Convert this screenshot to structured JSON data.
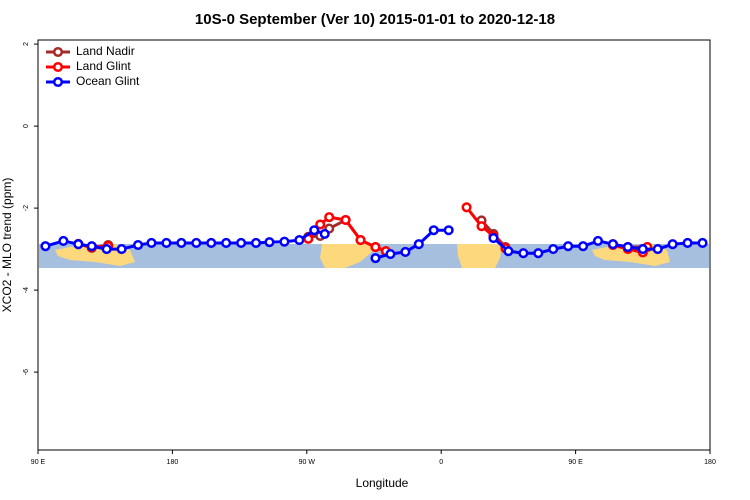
{
  "chart_data": {
    "type": "line",
    "title": "10S-0 September (Ver 10)   2015-01-01 to 2020-12-18",
    "x_label": "Longitude",
    "y_label": "XCO2 - MLO trend (ppm)",
    "xlim": [
      90,
      540
    ],
    "ylim": [
      -7.9,
      2.1
    ],
    "xticks": [
      {
        "value": 90,
        "label": "90 E"
      },
      180,
      {
        "value": 270,
        "label": "90 W"
      },
      {
        "value": 360,
        "label": "0"
      },
      {
        "value": 450,
        "label": "90 E"
      },
      {
        "value": 540,
        "label": "180"
      }
    ],
    "yticks": [
      2,
      0,
      -2,
      -4,
      -6
    ],
    "legend": "top-left",
    "series": [
      {
        "name": "Land Nadir",
        "color": "#a52a2a",
        "x": [
          117,
          126,
          137,
          200,
          271,
          279,
          285,
          296,
          306,
          316,
          323,
          350,
          387,
          395,
          403,
          440,
          475,
          485,
          498
        ],
        "values": [
          -2.87,
          -2.97,
          -2.9,
          null,
          -2.7,
          -2.68,
          -2.5,
          -2.29,
          -2.78,
          -2.95,
          -3.05,
          null,
          -2.3,
          -2.63,
          -2.95,
          null,
          -2.88,
          -2.95,
          -2.95
        ]
      },
      {
        "name": "Land Glint",
        "color": "#ff0000",
        "x": [
          117,
          126,
          137,
          200,
          271,
          279,
          285,
          296,
          306,
          316,
          323,
          350,
          377,
          387,
          395,
          403,
          440,
          475,
          485,
          495,
          498
        ],
        "values": [
          -2.88,
          -2.95,
          -2.93,
          null,
          -2.75,
          -2.4,
          -2.22,
          -2.29,
          -2.78,
          -2.95,
          -3.05,
          null,
          -1.98,
          -2.44,
          -2.68,
          -2.98,
          null,
          -2.9,
          -3.0,
          -3.08,
          -2.95
        ]
      },
      {
        "name": "Ocean Glint",
        "color": "#0000ff",
        "x": [
          95,
          107,
          117,
          126,
          136,
          146,
          157,
          166,
          176,
          186,
          196,
          206,
          216,
          226,
          236,
          245,
          255,
          265,
          275,
          282,
          300,
          316,
          326,
          336,
          345,
          355,
          365,
          380,
          395,
          405,
          415,
          425,
          435,
          445,
          455,
          465,
          475,
          485,
          495,
          505,
          515,
          525,
          535
        ],
        "values": [
          -2.93,
          -2.8,
          -2.88,
          -2.93,
          -3.0,
          -3.0,
          -2.9,
          -2.85,
          -2.85,
          -2.85,
          -2.85,
          -2.85,
          -2.85,
          -2.85,
          -2.85,
          -2.83,
          -2.82,
          -2.78,
          -2.54,
          -2.63,
          null,
          -3.22,
          -3.12,
          -3.07,
          -2.88,
          -2.54,
          -2.54,
          null,
          -2.73,
          -3.05,
          -3.1,
          -3.1,
          -3.0,
          -2.93,
          -2.93,
          -2.8,
          -2.88,
          -2.95,
          -3.0,
          -3.0,
          -2.88,
          -2.85,
          -2.85
        ]
      }
    ]
  }
}
